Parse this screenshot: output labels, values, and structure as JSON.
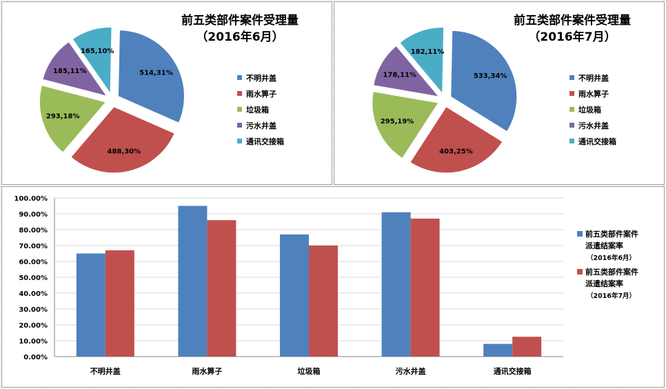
{
  "chart_data": [
    {
      "type": "pie",
      "title": "前五类部件案件受理量",
      "subtitle": "（2016年6月）",
      "labels": [
        "不明井盖",
        "雨水箅子",
        "垃圾箱",
        "污水井盖",
        "通讯交接箱"
      ],
      "values": [
        514,
        488,
        293,
        185,
        165
      ],
      "percent_labels": [
        "514,31%",
        "488,30%",
        "293,18%",
        "185,11%",
        "165,10%"
      ],
      "colors": [
        "#4F81BD",
        "#C0504D",
        "#9BBB59",
        "#8064A2",
        "#4BACC6"
      ],
      "exploded": true,
      "legend": "right"
    },
    {
      "type": "pie",
      "title": "前五类部件案件受理量",
      "subtitle": "（2016年7月）",
      "labels": [
        "不明井盖",
        "雨水箅子",
        "垃圾箱",
        "污水井盖",
        "通讯交接箱"
      ],
      "values": [
        533,
        403,
        295,
        178,
        182
      ],
      "percent_labels": [
        "533,34%",
        "403,25%",
        "295,19%",
        "178,11%",
        "182,11%"
      ],
      "colors": [
        "#4F81BD",
        "#C0504D",
        "#9BBB59",
        "#8064A2",
        "#4BACC6"
      ],
      "exploded": true,
      "legend": "right"
    },
    {
      "type": "bar",
      "categories": [
        "不明井盖",
        "雨水箅子",
        "垃圾箱",
        "污水井盖",
        "通讯交接箱"
      ],
      "series": [
        {
          "name": "前五类部件案件派遣结案率",
          "name_line1": "前五类部件案件",
          "name_line2": "派遣结案率",
          "name_line3": "（2016年6月）",
          "color": "#4F81BD",
          "values": [
            0.65,
            0.95,
            0.77,
            0.91,
            0.08
          ]
        },
        {
          "name": "前五类部件案件派遣结案率",
          "name_line1": "前五类部件案件",
          "name_line2": "派遣结案率",
          "name_line3": "（2016年7月）",
          "color": "#C0504D",
          "values": [
            0.67,
            0.86,
            0.7,
            0.87,
            0.125
          ]
        }
      ],
      "ylim": [
        0,
        1
      ],
      "yticks": [
        0,
        0.1,
        0.2,
        0.3,
        0.4,
        0.5,
        0.6,
        0.7,
        0.8,
        0.9,
        1.0
      ],
      "ytick_labels": [
        "0.00%",
        "10.00%",
        "20.00%",
        "30.00%",
        "40.00%",
        "50.00%",
        "60.00%",
        "70.00%",
        "80.00%",
        "90.00%",
        "100.00%"
      ],
      "grid": true,
      "legend": "right"
    }
  ]
}
